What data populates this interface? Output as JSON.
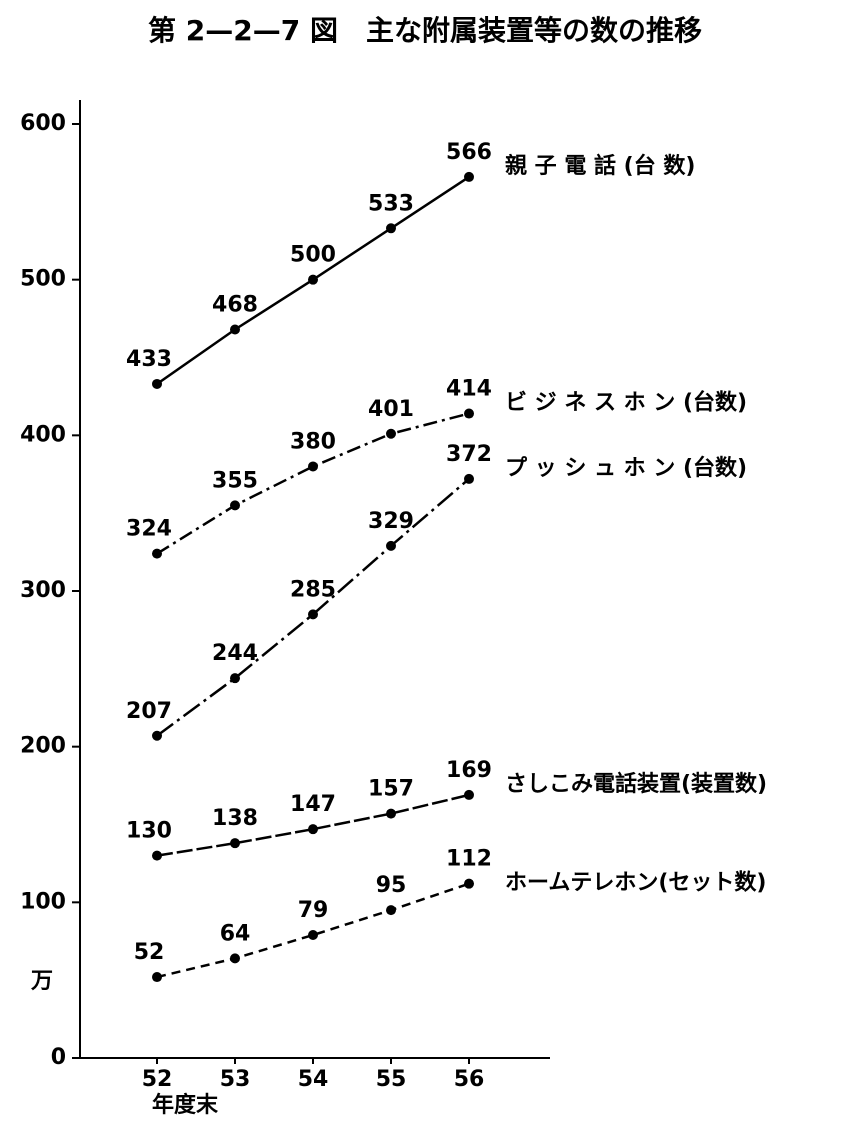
{
  "chart_data": {
    "type": "line",
    "title": "第 2—2—7 図　主な附属装置等の数の推移",
    "y_unit": "万",
    "x_label": "年度末",
    "categories": [
      "52",
      "53",
      "54",
      "55",
      "56"
    ],
    "ylim": [
      0,
      600
    ],
    "yticks": [
      0,
      100,
      200,
      300,
      400,
      500,
      600
    ],
    "color": "#000000",
    "series": [
      {
        "name": "親 子 電 話 (台 数)",
        "style": "solid",
        "values": [
          433,
          468,
          500,
          533,
          566
        ]
      },
      {
        "name": "ビ ジ ネ ス ホ ン (台数)",
        "style": "dashdot",
        "values": [
          324,
          355,
          380,
          401,
          414
        ]
      },
      {
        "name": "プ ッ シ ュ ホ ン (台数)",
        "style": "longdashdot",
        "values": [
          207,
          244,
          285,
          329,
          372
        ]
      },
      {
        "name": "さしこみ電話装置(装置数)",
        "style": "longdash",
        "values": [
          130,
          138,
          147,
          157,
          169
        ]
      },
      {
        "name": "ホームテレホン(セット数)",
        "style": "dashed",
        "values": [
          52,
          64,
          79,
          95,
          112
        ]
      }
    ]
  }
}
